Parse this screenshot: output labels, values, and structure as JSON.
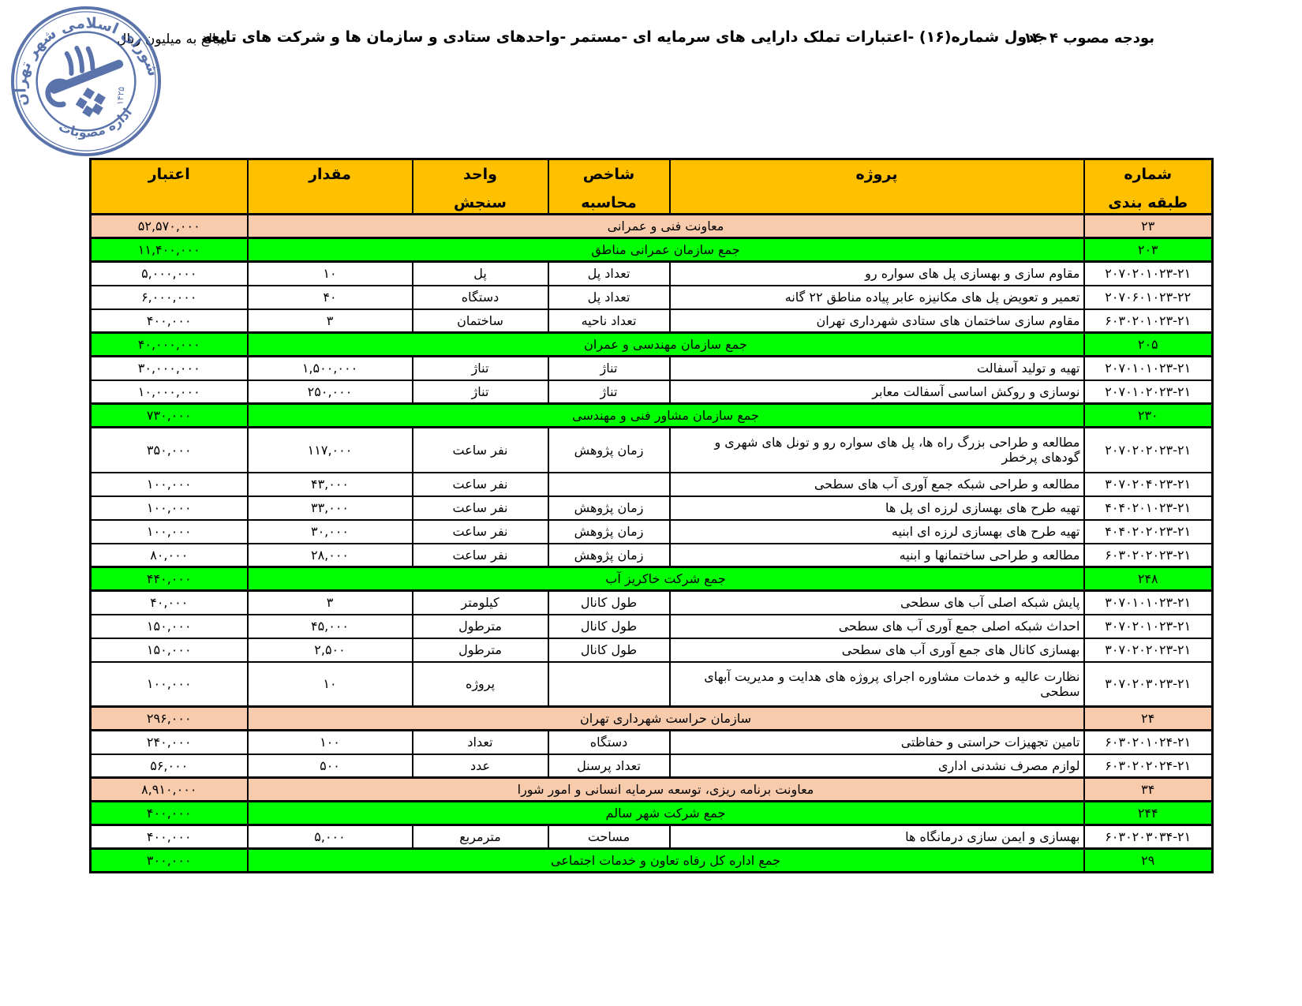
{
  "page": {
    "note": "مبالغ به میلیون ریال",
    "title": "جدول شماره(۱۶) -اعتبارات تملک دارایی های سرمایه ای -مستمر -واحدهای ستادی و سازمان ها و شرکت های تابعه",
    "budget_label": "بودجه مصوب ۱۴۰۴"
  },
  "stamp": {
    "ring_top": "شورای اسلامی شهر تهران",
    "ring_bottom": "اداره مصوبات",
    "inner_mark": "۱۴۲۵",
    "color": "#44609F"
  },
  "table": {
    "colors": {
      "header": "#FFC000",
      "section": "#F8CBAD",
      "sum": "#00FF00"
    },
    "columns": [
      {
        "id": "code",
        "line1": "شماره",
        "line2": "طبقه بندی"
      },
      {
        "id": "project",
        "line1": "پروژه",
        "line2": ""
      },
      {
        "id": "index",
        "line1": "شاخص",
        "line2": "محاسبه"
      },
      {
        "id": "unit",
        "line1": "واحد",
        "line2": "سنجش"
      },
      {
        "id": "qty",
        "line1": "مقدار",
        "line2": ""
      },
      {
        "id": "credit",
        "line1": "اعتبار",
        "line2": ""
      }
    ],
    "rows": [
      {
        "t": "sec",
        "code": "۲۳",
        "label": "معاونت فنی و عمرانی",
        "credit": "۵۲,۵۷۰,۰۰۰"
      },
      {
        "t": "sum",
        "code": "۲۰۳",
        "label": "جمع سازمان عمرانی مناطق",
        "credit": "۱۱,۴۰۰,۰۰۰"
      },
      {
        "t": "d",
        "code": "۲۰۷۰۲۰۱۰۲۳-۲۱",
        "project": "مقاوم سازی و بهسازی پل های سواره رو",
        "index": "تعداد پل",
        "unit": "پل",
        "qty": "۱۰",
        "credit": "۵,۰۰۰,۰۰۰"
      },
      {
        "t": "d",
        "code": "۲۰۷۰۶۰۱۰۲۳-۲۲",
        "project": "تعمیر و تعویض پل های مکانیزه عابر پیاده مناطق ۲۲ گانه",
        "index": "تعداد پل",
        "unit": "دستگاه",
        "qty": "۴۰",
        "credit": "۶,۰۰۰,۰۰۰"
      },
      {
        "t": "d",
        "code": "۶۰۳۰۲۰۱۰۲۳-۲۱",
        "project": "مقاوم سازی ساختمان های ستادی شهرداری تهران",
        "index": "تعداد ناحیه",
        "unit": "ساختمان",
        "qty": "۳",
        "credit": "۴۰۰,۰۰۰"
      },
      {
        "t": "sum",
        "code": "۲۰۵",
        "label": "جمع سازمان مهندسی و عمران",
        "credit": "۴۰,۰۰۰,۰۰۰"
      },
      {
        "t": "d",
        "code": "۲۰۷۰۱۰۱۰۲۳-۲۱",
        "project": "تهیه و تولید آسفالت",
        "index": "تناژ",
        "unit": "تناژ",
        "qty": "۱,۵۰۰,۰۰۰",
        "credit": "۳۰,۰۰۰,۰۰۰"
      },
      {
        "t": "d",
        "code": "۲۰۷۰۱۰۲۰۲۳-۲۱",
        "project": "نوسازی و روکش اساسی آسفالت معابر",
        "index": "تناژ",
        "unit": "تناژ",
        "qty": "۲۵۰,۰۰۰",
        "credit": "۱۰,۰۰۰,۰۰۰"
      },
      {
        "t": "sum",
        "code": "۲۳۰",
        "label": "جمع سازمان مشاور فنی و مهندسی",
        "credit": "۷۳۰,۰۰۰"
      },
      {
        "t": "d",
        "code": "۲۰۷۰۲۰۲۰۲۳-۲۱",
        "project": "مطالعه و طراحی بزرگ راه ها، پل های سواره رو و تونل های شهری و گودهای پرخطر",
        "index": "زمان پژوهش",
        "unit": "نفر ساعت",
        "qty": "۱۱۷,۰۰۰",
        "credit": "۳۵۰,۰۰۰"
      },
      {
        "t": "d",
        "code": "۳۰۷۰۲۰۴۰۲۳-۲۱",
        "project": "مطالعه و طراحی شبکه جمع آوری آب های سطحی",
        "index": "",
        "unit": "نفر ساعت",
        "qty": "۴۳,۰۰۰",
        "credit": "۱۰۰,۰۰۰"
      },
      {
        "t": "d",
        "code": "۴۰۴۰۲۰۱۰۲۳-۲۱",
        "project": "تهیه طرح های بهسازی لرزه ای پل ها",
        "index": "زمان پژوهش",
        "unit": "نفر ساعت",
        "qty": "۳۳,۰۰۰",
        "credit": "۱۰۰,۰۰۰"
      },
      {
        "t": "d",
        "code": "۴۰۴۰۲۰۲۰۲۳-۲۱",
        "project": "تهیه طرح های بهسازی لرزه ای ابنیه",
        "index": "زمان پژوهش",
        "unit": "نفر ساعت",
        "qty": "۳۰,۰۰۰",
        "credit": "۱۰۰,۰۰۰"
      },
      {
        "t": "d",
        "code": "۶۰۳۰۲۰۲۰۲۳-۲۱",
        "project": "مطالعه و طراحی ساختمانها و ابنیه",
        "index": "زمان پژوهش",
        "unit": "نفر ساعت",
        "qty": "۲۸,۰۰۰",
        "credit": "۸۰,۰۰۰"
      },
      {
        "t": "sum",
        "code": "۲۴۸",
        "label": "جمع شرکت خاکریز آب",
        "credit": "۴۴۰,۰۰۰"
      },
      {
        "t": "d",
        "code": "۳۰۷۰۱۰۱۰۲۳-۲۱",
        "project": "پایش شبکه اصلی آب های سطحی",
        "index": "طول کانال",
        "unit": "کیلومتر",
        "qty": "۳",
        "credit": "۴۰,۰۰۰"
      },
      {
        "t": "d",
        "code": "۳۰۷۰۲۰۱۰۲۳-۲۱",
        "project": "احداث شبکه اصلی جمع آوری آب های سطحی",
        "index": "طول کانال",
        "unit": "مترطول",
        "qty": "۴۵,۰۰۰",
        "credit": "۱۵۰,۰۰۰"
      },
      {
        "t": "d",
        "code": "۳۰۷۰۲۰۲۰۲۳-۲۱",
        "project": "بهسازی کانال های جمع آوری آب های سطحی",
        "index": "طول کانال",
        "unit": "مترطول",
        "qty": "۲,۵۰۰",
        "credit": "۱۵۰,۰۰۰"
      },
      {
        "t": "d",
        "code": "۳۰۷۰۲۰۳۰۲۳-۲۱",
        "project": "نظارت عالیه و خدمات مشاوره اجرای پروژه های هدایت و مدیریت آبهای سطحی",
        "index": "",
        "unit": "پروژه",
        "qty": "۱۰",
        "credit": "۱۰۰,۰۰۰"
      },
      {
        "t": "sec",
        "code": "۲۴",
        "label": "سازمان حراست شهرداری تهران",
        "credit": "۲۹۶,۰۰۰"
      },
      {
        "t": "d",
        "code": "۶۰۳۰۲۰۱۰۲۴-۲۱",
        "project": "تامین تجهیزات حراستی و حفاظتی",
        "index": "دستگاه",
        "unit": "تعداد",
        "qty": "۱۰۰",
        "credit": "۲۴۰,۰۰۰"
      },
      {
        "t": "d",
        "code": "۶۰۳۰۲۰۲۰۲۴-۲۱",
        "project": "لوازم مصرف نشدنی اداری",
        "index": "تعداد پرسنل",
        "unit": "عدد",
        "qty": "۵۰۰",
        "credit": "۵۶,۰۰۰"
      },
      {
        "t": "sec",
        "code": "۳۴",
        "label": "معاونت برنامه ریزی، توسعه سرمایه انسانی و امور شورا",
        "credit": "۸,۹۱۰,۰۰۰"
      },
      {
        "t": "sum",
        "code": "۲۴۴",
        "label": "جمع شرکت شهر سالم",
        "credit": "۴۰۰,۰۰۰"
      },
      {
        "t": "d",
        "code": "۶۰۳۰۲۰۳۰۳۴-۲۱",
        "project": "بهسازی و ایمن سازی درمانگاه ها",
        "index": "مساحت",
        "unit": "مترمربع",
        "qty": "۵,۰۰۰",
        "credit": "۴۰۰,۰۰۰"
      },
      {
        "t": "sum",
        "code": "۲۹",
        "label": "جمع اداره کل رفاه تعاون و خدمات اجتماعی",
        "credit": "۳۰۰,۰۰۰"
      }
    ]
  }
}
